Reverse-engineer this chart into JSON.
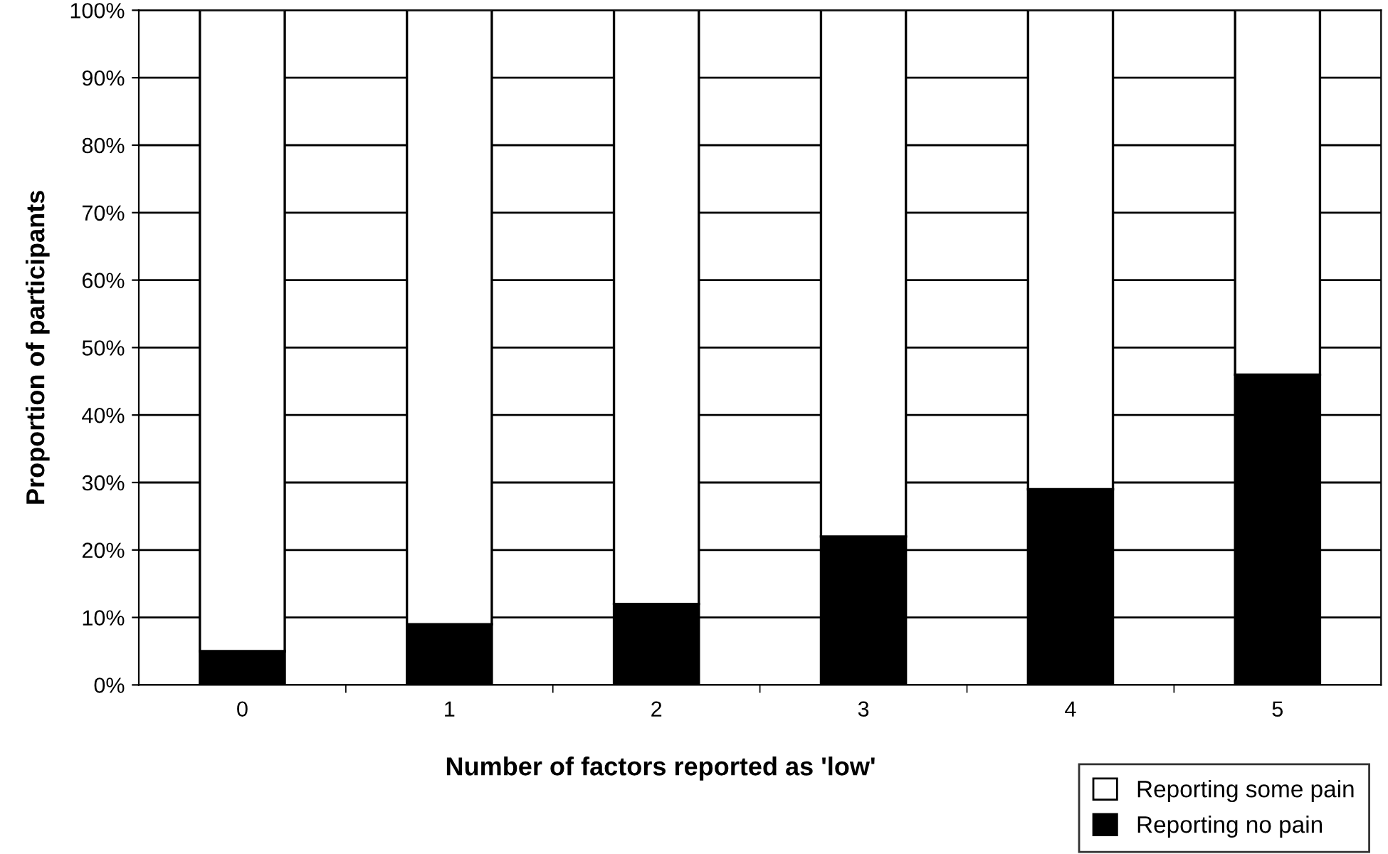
{
  "chart_data": {
    "type": "bar",
    "stacked": true,
    "xlabel": "Number of factors reported as 'low'",
    "ylabel": "Proportion of participants",
    "categories": [
      "0",
      "1",
      "2",
      "3",
      "4",
      "5"
    ],
    "series": [
      {
        "name": "Reporting no pain",
        "color": "#000000",
        "values": [
          5,
          9,
          12,
          22,
          29,
          46
        ]
      },
      {
        "name": "Reporting some pain",
        "color": "#ffffff",
        "values": [
          95,
          91,
          88,
          78,
          71,
          54
        ]
      }
    ],
    "ylim": [
      0,
      100
    ],
    "yticks": [
      {
        "value": 0,
        "label": "0%"
      },
      {
        "value": 10,
        "label": "10%"
      },
      {
        "value": 20,
        "label": "20%"
      },
      {
        "value": 30,
        "label": "30%"
      },
      {
        "value": 40,
        "label": "40%"
      },
      {
        "value": 50,
        "label": "50%"
      },
      {
        "value": 60,
        "label": "60%"
      },
      {
        "value": 70,
        "label": "70%"
      },
      {
        "value": 80,
        "label": "80%"
      },
      {
        "value": 90,
        "label": "90%"
      },
      {
        "value": 100,
        "label": "100%"
      }
    ],
    "grid": "y",
    "legend": "bottom right"
  }
}
